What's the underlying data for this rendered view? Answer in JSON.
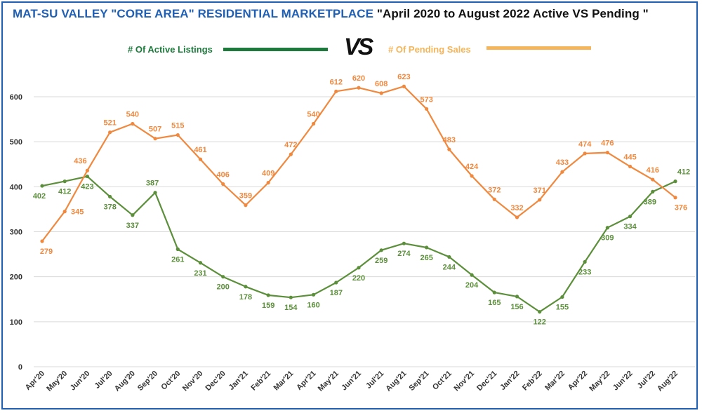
{
  "title": {
    "part1": "MAT-SU VALLEY \"CORE AREA\" RESIDENTIAL MARKETPLACE",
    "part2": "\"April 2020 to August 2022 Active VS Pending  \""
  },
  "vs_label": "VS",
  "colors": {
    "active": "#5b8f3a",
    "active_legend": "#1e7a3c",
    "pending": "#f0883e",
    "pending_legend": "#f5b55a",
    "title_blue": "#1f5fb4",
    "grid": "#d9d9d9"
  },
  "chart_data": {
    "type": "line",
    "x": [
      "Apr'20",
      "May'20",
      "Jun'20",
      "Jul'20",
      "Aug'20",
      "Sep'20",
      "Oct'20",
      "Nov'20",
      "Dec'20",
      "Jan'21",
      "Feb'21",
      "Mar'21",
      "Apr'21",
      "May'21",
      "Jun'21",
      "Jul'21",
      "Aug'21",
      "Sep'21",
      "Oct'21",
      "Nov'21",
      "Dec'21",
      "Jan'22",
      "Feb'22",
      "Mar'22",
      "Apr'22",
      "May'22",
      "Jun'22",
      "Jul'22",
      "Aug'22"
    ],
    "series": [
      {
        "name": "# Of Active Listings",
        "values": [
          402,
          412,
          423,
          378,
          337,
          387,
          261,
          231,
          200,
          178,
          159,
          154,
          160,
          187,
          220,
          259,
          274,
          265,
          244,
          204,
          165,
          156,
          122,
          155,
          233,
          309,
          334,
          389,
          412
        ]
      },
      {
        "name": "# Of Pending Sales",
        "values": [
          279,
          345,
          436,
          521,
          540,
          507,
          515,
          461,
          406,
          359,
          409,
          472,
          540,
          612,
          620,
          608,
          623,
          573,
          483,
          424,
          372,
          332,
          371,
          433,
          474,
          476,
          445,
          416,
          376
        ]
      }
    ],
    "yticks": [
      0,
      100,
      200,
      300,
      400,
      500,
      600
    ],
    "ylim": [
      0,
      650
    ],
    "grid": true,
    "legend_position": "top-center"
  }
}
